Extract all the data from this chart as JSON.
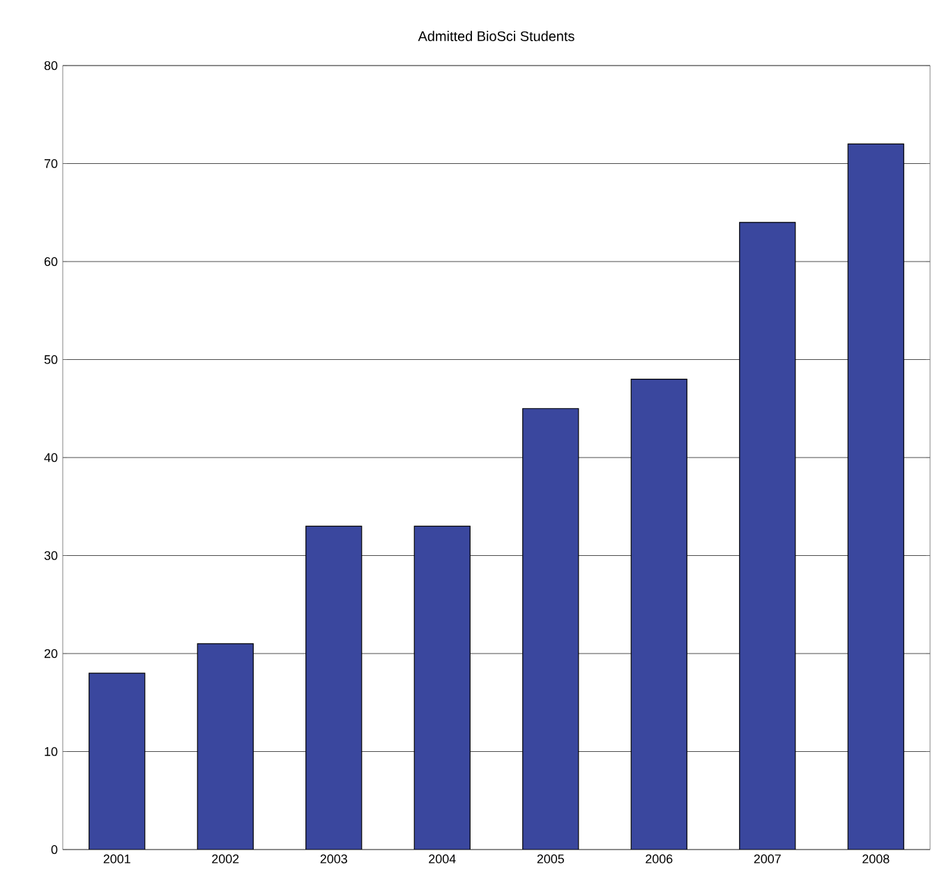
{
  "chart_data": {
    "type": "bar",
    "title": "Admitted BioSci Students",
    "categories": [
      "2001",
      "2002",
      "2003",
      "2004",
      "2005",
      "2006",
      "2007",
      "2008"
    ],
    "values": [
      18,
      21,
      33,
      33,
      45,
      48,
      64,
      72
    ],
    "color": "#3a479e",
    "ylim": [
      0,
      80
    ],
    "yticks": [
      0,
      10,
      20,
      30,
      40,
      50,
      60,
      70,
      80
    ],
    "grid": "y"
  }
}
